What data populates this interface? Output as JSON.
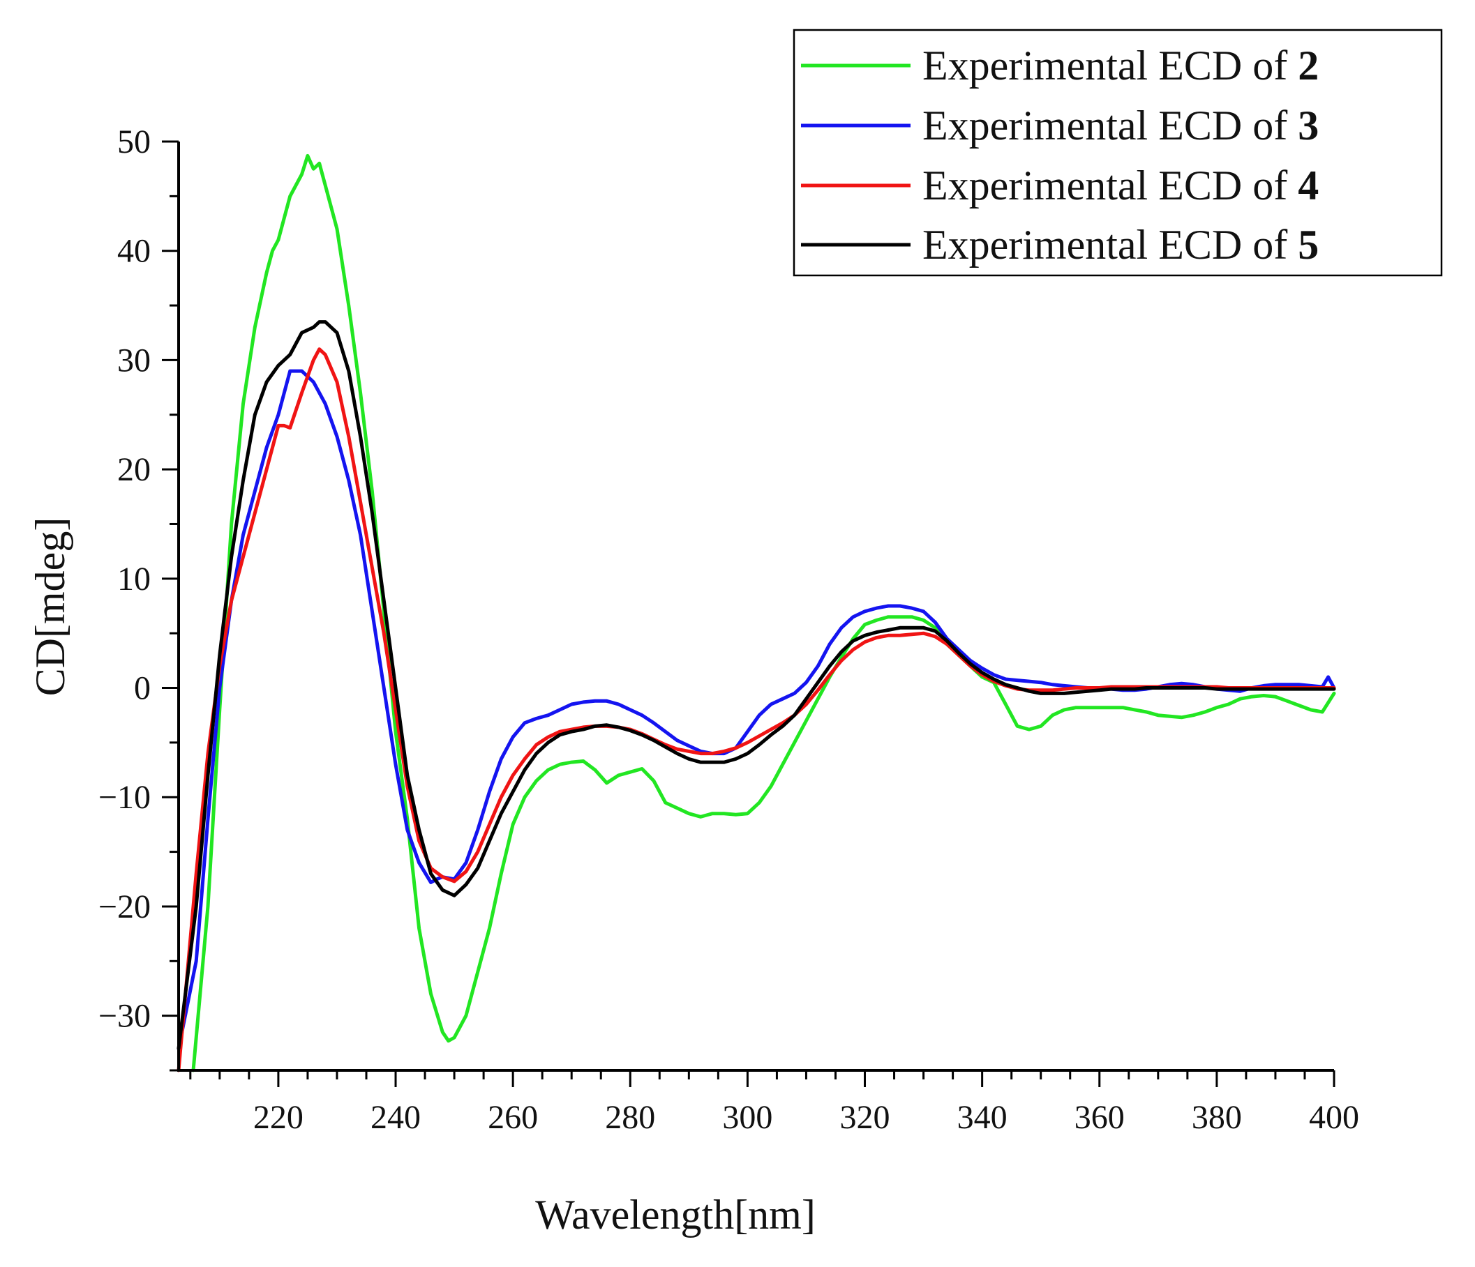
{
  "chart_data": {
    "type": "line",
    "title": "",
    "xlabel": "Wavelength[nm]",
    "ylabel": "CD[mdeg]",
    "xlim": [
      203,
      400
    ],
    "ylim": [
      -35,
      50
    ],
    "xticks": [
      220,
      240,
      260,
      280,
      300,
      320,
      340,
      360,
      380,
      400
    ],
    "yticks": [
      50,
      40,
      30,
      20,
      10,
      0,
      -10,
      -20,
      -30
    ],
    "xtick_labels": [
      "220",
      "240",
      "260",
      "280",
      "300",
      "320",
      "340",
      "360",
      "380",
      "400"
    ],
    "ytick_labels": [
      "50",
      "40",
      "30",
      "20",
      "10",
      "0",
      "−10",
      "−20",
      "−30"
    ],
    "grid": false,
    "legend_position": "top-right",
    "series": [
      {
        "name": "Experimental ECD of 2",
        "label_prefix": "Experimental ECD of ",
        "label_number": "2",
        "color": "#22e622",
        "x": [
          205.5,
          208,
          210,
          212,
          214,
          216,
          218,
          219,
          220,
          222,
          224,
          225,
          226,
          227,
          228,
          230,
          232,
          234,
          236,
          238,
          240,
          242,
          244,
          246,
          248,
          249,
          250,
          252,
          254,
          256,
          258,
          260,
          262,
          264,
          266,
          268,
          270,
          272,
          274,
          276,
          278,
          280,
          282,
          284,
          286,
          288,
          290,
          292,
          294,
          296,
          298,
          300,
          302,
          304,
          306,
          308,
          310,
          312,
          314,
          316,
          318,
          320,
          322,
          324,
          326,
          328,
          330,
          332,
          334,
          336,
          338,
          340,
          342,
          344,
          346,
          348,
          350,
          352,
          354,
          356,
          358,
          360,
          362,
          364,
          366,
          368,
          370,
          372,
          374,
          376,
          378,
          380,
          382,
          384,
          386,
          388,
          390,
          392,
          394,
          396,
          398,
          400
        ],
        "y": [
          -35,
          -20,
          -2,
          15,
          26,
          33,
          38,
          40,
          41,
          45,
          47,
          48.7,
          47.5,
          48,
          46,
          42,
          35,
          27,
          18,
          7,
          -4,
          -12,
          -22,
          -28,
          -31.5,
          -32.3,
          -32,
          -30,
          -26,
          -22,
          -17,
          -12.5,
          -10,
          -8.5,
          -7.5,
          -7,
          -6.8,
          -6.7,
          -7.5,
          -8.7,
          -8,
          -7.7,
          -7.4,
          -8.5,
          -10.5,
          -11,
          -11.5,
          -11.8,
          -11.5,
          -11.5,
          -11.6,
          -11.5,
          -10.5,
          -9,
          -7,
          -5,
          -3,
          -1,
          1,
          2.8,
          4.5,
          5.8,
          6.2,
          6.5,
          6.5,
          6.5,
          6.2,
          5.5,
          4,
          3,
          2,
          1,
          0.5,
          -1.5,
          -3.5,
          -3.8,
          -3.5,
          -2.5,
          -2,
          -1.8,
          -1.8,
          -1.8,
          -1.8,
          -1.8,
          -2,
          -2.2,
          -2.5,
          -2.6,
          -2.7,
          -2.5,
          -2.2,
          -1.8,
          -1.5,
          -1,
          -0.8,
          -0.7,
          -0.8,
          -1.2,
          -1.6,
          -2,
          -2.2,
          -0.5
        ]
      },
      {
        "name": "Experimental ECD of 3",
        "label_prefix": "Experimental ECD of ",
        "label_number": "3",
        "color": "#1414f0",
        "x": [
          203,
          206,
          208,
          210,
          212,
          214,
          216,
          218,
          220,
          221,
          222,
          224,
          226,
          228,
          230,
          232,
          234,
          236,
          238,
          240,
          242,
          244,
          246,
          247,
          248,
          250,
          252,
          254,
          256,
          258,
          260,
          262,
          264,
          266,
          268,
          270,
          272,
          274,
          276,
          278,
          280,
          282,
          284,
          286,
          288,
          290,
          292,
          294,
          296,
          298,
          300,
          302,
          304,
          306,
          308,
          310,
          312,
          314,
          316,
          318,
          320,
          322,
          324,
          326,
          328,
          330,
          332,
          334,
          336,
          338,
          340,
          342,
          344,
          346,
          348,
          350,
          352,
          354,
          356,
          358,
          360,
          362,
          364,
          366,
          368,
          370,
          372,
          374,
          376,
          378,
          380,
          382,
          384,
          386,
          388,
          390,
          392,
          394,
          396,
          398,
          399,
          400
        ],
        "y": [
          -33,
          -25,
          -12,
          0,
          8,
          14,
          18,
          22,
          25,
          27,
          29,
          29,
          28,
          26,
          23,
          19,
          14,
          7,
          0,
          -7,
          -13,
          -16,
          -17.8,
          -17.5,
          -17.3,
          -17.5,
          -16,
          -13,
          -9.5,
          -6.5,
          -4.5,
          -3.2,
          -2.8,
          -2.5,
          -2,
          -1.5,
          -1.3,
          -1.2,
          -1.2,
          -1.5,
          -2,
          -2.5,
          -3.2,
          -4,
          -4.8,
          -5.3,
          -5.8,
          -6,
          -6,
          -5.5,
          -4,
          -2.5,
          -1.5,
          -1,
          -0.5,
          0.5,
          2,
          4,
          5.5,
          6.5,
          7,
          7.3,
          7.5,
          7.5,
          7.3,
          7,
          6,
          4.5,
          3.5,
          2.5,
          1.8,
          1.2,
          0.8,
          0.7,
          0.6,
          0.5,
          0.3,
          0.2,
          0.1,
          0,
          0,
          -0.1,
          -0.2,
          -0.2,
          -0.1,
          0.1,
          0.3,
          0.4,
          0.3,
          0.1,
          -0.1,
          -0.2,
          -0.3,
          0,
          0.2,
          0.3,
          0.3,
          0.3,
          0.2,
          0.1,
          1,
          0
        ]
      },
      {
        "name": "Experimental ECD of 4",
        "label_prefix": "Experimental ECD of ",
        "label_number": "4",
        "color": "#f01414",
        "x": [
          203,
          206,
          208,
          210,
          212,
          214,
          216,
          218,
          219,
          220,
          221,
          222,
          224,
          226,
          227,
          228,
          230,
          232,
          234,
          236,
          238,
          240,
          242,
          244,
          246,
          248,
          250,
          252,
          254,
          256,
          258,
          260,
          262,
          264,
          266,
          268,
          270,
          272,
          274,
          276,
          278,
          280,
          282,
          284,
          286,
          288,
          290,
          292,
          294,
          296,
          298,
          300,
          302,
          304,
          306,
          308,
          310,
          312,
          314,
          316,
          318,
          320,
          322,
          324,
          326,
          328,
          330,
          332,
          334,
          336,
          338,
          340,
          342,
          344,
          346,
          348,
          350,
          352,
          354,
          356,
          358,
          360,
          362,
          364,
          366,
          368,
          370,
          372,
          374,
          376,
          378,
          380,
          382,
          384,
          386,
          388,
          390,
          392,
          394,
          396,
          398,
          400
        ],
        "y": [
          -35,
          -17,
          -6,
          2,
          8,
          12,
          16,
          20,
          22,
          24,
          24,
          23.8,
          27,
          30,
          31,
          30.5,
          28,
          23,
          17,
          11,
          5,
          -2,
          -9,
          -14,
          -16.5,
          -17.3,
          -17.7,
          -16.8,
          -15,
          -12.5,
          -10,
          -8,
          -6.5,
          -5.2,
          -4.5,
          -4,
          -3.8,
          -3.6,
          -3.5,
          -3.5,
          -3.6,
          -3.8,
          -4.2,
          -4.7,
          -5.2,
          -5.6,
          -5.8,
          -6,
          -6,
          -5.8,
          -5.5,
          -5,
          -4.4,
          -3.8,
          -3.2,
          -2.5,
          -1.5,
          -0.2,
          1.2,
          2.5,
          3.5,
          4.2,
          4.6,
          4.8,
          4.8,
          4.9,
          5,
          4.7,
          4,
          3,
          2,
          1.2,
          0.6,
          0.2,
          -0.1,
          -0.2,
          -0.2,
          -0.2,
          -0.1,
          0,
          0,
          0,
          0.1,
          0.1,
          0.1,
          0.1,
          0.1,
          0.1,
          0.1,
          0.1,
          0.1,
          0.1,
          0,
          0,
          0,
          0,
          0,
          0,
          0,
          0,
          0,
          0
        ]
      },
      {
        "name": "Experimental ECD of 5",
        "label_prefix": "Experimental ECD of ",
        "label_number": "5",
        "color": "#000000",
        "x": [
          203,
          206,
          208,
          210,
          212,
          214,
          216,
          218,
          220,
          222,
          224,
          226,
          227,
          228,
          230,
          232,
          234,
          236,
          238,
          240,
          242,
          244,
          246,
          248,
          250,
          252,
          254,
          256,
          258,
          260,
          262,
          264,
          266,
          268,
          270,
          272,
          274,
          276,
          278,
          280,
          282,
          284,
          286,
          288,
          290,
          292,
          294,
          296,
          298,
          300,
          302,
          304,
          306,
          308,
          310,
          312,
          314,
          316,
          318,
          320,
          322,
          324,
          326,
          328,
          330,
          332,
          334,
          336,
          338,
          340,
          342,
          344,
          346,
          348,
          350,
          352,
          354,
          356,
          358,
          360,
          362,
          364,
          366,
          368,
          370,
          372,
          374,
          376,
          378,
          380,
          382,
          384,
          386,
          388,
          390,
          392,
          394,
          396,
          398,
          400
        ],
        "y": [
          -33,
          -20,
          -8,
          3,
          12,
          19,
          25,
          28,
          29.5,
          30.5,
          32.5,
          33,
          33.5,
          33.5,
          32.5,
          29,
          23,
          16,
          8,
          0,
          -8,
          -13,
          -17,
          -18.5,
          -19,
          -18,
          -16.5,
          -14,
          -11.5,
          -9.5,
          -7.5,
          -6,
          -5,
          -4.3,
          -4,
          -3.8,
          -3.5,
          -3.4,
          -3.6,
          -3.9,
          -4.3,
          -4.8,
          -5.4,
          -6,
          -6.5,
          -6.8,
          -6.8,
          -6.8,
          -6.5,
          -6,
          -5.2,
          -4.3,
          -3.5,
          -2.5,
          -1,
          0.5,
          2,
          3.3,
          4.3,
          4.8,
          5.1,
          5.3,
          5.5,
          5.5,
          5.5,
          5.2,
          4.3,
          3.2,
          2.2,
          1.4,
          0.8,
          0.3,
          0,
          -0.3,
          -0.5,
          -0.5,
          -0.5,
          -0.4,
          -0.3,
          -0.2,
          -0.1,
          -0.1,
          -0.1,
          0,
          0,
          0,
          0,
          0,
          0,
          -0.1,
          -0.1,
          -0.1,
          -0.1,
          -0.1,
          -0.1,
          -0.1,
          -0.1,
          -0.1,
          -0.1,
          -0.1
        ]
      }
    ]
  }
}
